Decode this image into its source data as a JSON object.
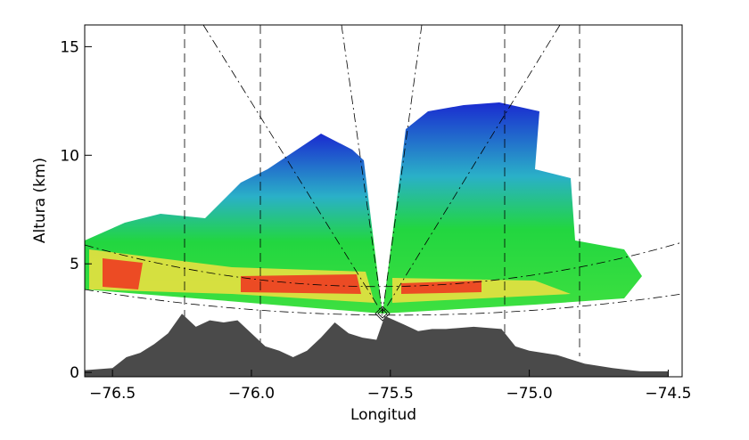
{
  "chart_data": {
    "type": "area",
    "xlabel": "Longitud",
    "ylabel": "Altura (km)",
    "xlim": [
      -76.6,
      -74.45
    ],
    "ylim": [
      -0.2,
      16
    ],
    "xticks": [
      {
        "value": -76.5,
        "label": "−76.5"
      },
      {
        "value": -76.0,
        "label": "−76.0"
      },
      {
        "value": -75.5,
        "label": "−75.5"
      },
      {
        "value": -75.0,
        "label": "−75.0"
      },
      {
        "value": -74.5,
        "label": "−74.5"
      }
    ],
    "yticks": [
      0,
      5,
      10,
      15
    ],
    "series": [
      {
        "color": "#4a4a4a",
        "x": [
          -76.6,
          -76.5,
          -76.45,
          -76.4,
          -76.35,
          -76.3,
          -76.25,
          -76.2,
          -76.15,
          -76.1,
          -76.05,
          -76.0,
          -75.95,
          -75.9,
          -75.85,
          -75.8,
          -75.75,
          -75.7,
          -75.65,
          -75.6,
          -75.55,
          -75.52,
          -75.45,
          -75.4,
          -75.35,
          -75.3,
          -75.2,
          -75.1,
          -75.05,
          -75.0,
          -74.9,
          -74.8,
          -74.7,
          -74.6,
          -74.5
        ],
        "values": [
          0.1,
          0.2,
          0.7,
          0.9,
          1.3,
          1.8,
          2.7,
          2.1,
          2.4,
          2.3,
          2.4,
          1.8,
          1.2,
          1.0,
          0.7,
          1.0,
          1.6,
          2.3,
          1.8,
          1.6,
          1.5,
          2.6,
          2.2,
          1.9,
          2.0,
          2.0,
          2.1,
          2.0,
          1.2,
          1.0,
          0.8,
          0.4,
          0.2,
          0.05,
          0.05
        ]
      }
    ]
  }
}
